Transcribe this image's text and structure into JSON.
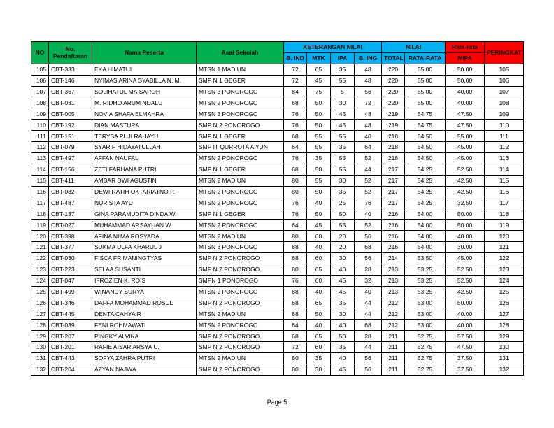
{
  "header": {
    "no": "NO",
    "registration": "No. Pendaftaran",
    "name": "Nama Peserta",
    "school": "Asal Sekolah",
    "scores_group": "KETERANGAN NILAI",
    "subjects": [
      "B. IND",
      "MTK",
      "IPA",
      "B. ING"
    ],
    "totals_group": "NILAI",
    "totals": [
      "TOTAL",
      "RATA-RATA"
    ],
    "mipa_top": "Rata-rata",
    "mipa_bottom": "MIPA",
    "rank": "PERINGKAT"
  },
  "rows": [
    [
      "105",
      "CBT-333",
      "EKA HIMATUL",
      "MTSN 1 MADIUN",
      "72",
      "65",
      "35",
      "48",
      "220",
      "55.00",
      "50.00",
      "105"
    ],
    [
      "106",
      "CBT-146",
      "NYIMAS ARINA SYABILLA N. M.",
      "SMP N 1 GEGER",
      "72",
      "45",
      "55",
      "48",
      "220",
      "55.00",
      "50.00",
      "106"
    ],
    [
      "107",
      "CBT-367",
      "SOLIHATUL MAISAROH",
      "MTSN 3 PONOROGO",
      "84",
      "75",
      "5",
      "56",
      "220",
      "55.00",
      "40.00",
      "107"
    ],
    [
      "108",
      "CBT-031",
      "M. RIDHO ARUM NDALU",
      "MTSN 2 PONOROGO",
      "68",
      "50",
      "30",
      "72",
      "220",
      "55.00",
      "40.00",
      "108"
    ],
    [
      "109",
      "CBT-005",
      "NOVIA SHAFA ELMAHRA",
      "MTSN 3 PONOROGO",
      "76",
      "50",
      "45",
      "48",
      "219",
      "54.75",
      "47.50",
      "109"
    ],
    [
      "110",
      "CBT-192",
      "DIAN MASTURA",
      "SMP N 2 PONOROGO",
      "76",
      "50",
      "45",
      "48",
      "219",
      "54.75",
      "47.50",
      "110"
    ],
    [
      "111",
      "CBT-151",
      "TERYSA PUJI RAHAYU",
      "SMP N 1 GEGER",
      "68",
      "55",
      "55",
      "40",
      "218",
      "54.50",
      "55.00",
      "111"
    ],
    [
      "112",
      "CBT-079",
      "SYARIF HIDAYATULLAH",
      "SMP IT QURROTA A'YUN",
      "64",
      "55",
      "35",
      "64",
      "218",
      "54.50",
      "45.00",
      "112"
    ],
    [
      "113",
      "CBT-497",
      "AFFAN NAUFAL",
      "MTSN 2 PONOROGO",
      "76",
      "35",
      "55",
      "52",
      "218",
      "54.50",
      "45.00",
      "113"
    ],
    [
      "114",
      "CBT-156",
      "ZETI FARHANA PUTRI",
      "SMP N 1 GEGER",
      "68",
      "50",
      "55",
      "44",
      "217",
      "54.25",
      "52.50",
      "114"
    ],
    [
      "115",
      "CBT-411",
      "AMBAR DWI AGUSTIN",
      "MTSN 2 MADIUN",
      "80",
      "55",
      "30",
      "52",
      "217",
      "54.25",
      "42.50",
      "115"
    ],
    [
      "116",
      "CBT-032",
      "DEWI RATIH OKTARIATNO P.",
      "MTSN 2 PONOROGO",
      "80",
      "50",
      "35",
      "52",
      "217",
      "54.25",
      "42.50",
      "116"
    ],
    [
      "117",
      "CBT-487",
      "NURISTA AYU",
      "MTSN 2 PONOROGO",
      "76",
      "40",
      "25",
      "76",
      "217",
      "54.25",
      "32.50",
      "117"
    ],
    [
      "118",
      "CBT-137",
      "GINA PARAMUDITA DINDA W.",
      "SMP N 1 GEGER",
      "76",
      "50",
      "50",
      "40",
      "216",
      "54.00",
      "50.00",
      "118"
    ],
    [
      "119",
      "CBT-027",
      "MUHAMMAD ARSAYUAN W.",
      "MTSN 2 PONOROGO",
      "64",
      "45",
      "55",
      "52",
      "216",
      "54.00",
      "50.00",
      "119"
    ],
    [
      "120",
      "CBT-398",
      "AFINA NI'MA ROSYADA",
      "MTSN 2 MADIUN",
      "80",
      "60",
      "20",
      "56",
      "216",
      "54.00",
      "40.00",
      "120"
    ],
    [
      "121",
      "CBT-377",
      "SUKMA ULFA KHARUL J",
      "MTSN 3 PONOROGO",
      "88",
      "40",
      "20",
      "68",
      "216",
      "54.00",
      "30.00",
      "121"
    ],
    [
      "122",
      "CBT-030",
      "FISCA FRIMANINGTYAS",
      "SMP N 2 PONOROGO",
      "68",
      "60",
      "30",
      "56",
      "214",
      "53.50",
      "45.00",
      "122"
    ],
    [
      "123",
      "CBT-223",
      "SELAA SUSANTI",
      "SMP N 2 PONOROGO",
      "80",
      "65",
      "40",
      "28",
      "213",
      "53.25",
      "52.50",
      "123"
    ],
    [
      "124",
      "CBT-047",
      "IFROZIEN K. ROIS",
      "SMPN 1 PONOROGO",
      "76",
      "60",
      "45",
      "32",
      "213",
      "53.25",
      "52.50",
      "124"
    ],
    [
      "125",
      "CBT-499",
      "WINANDY SURYA",
      "MTSN 2 PONOROGO",
      "88",
      "40",
      "45",
      "40",
      "213",
      "53.25",
      "42.50",
      "125"
    ],
    [
      "126",
      "CBT-346",
      "DAFFA MOHAMMAD ROSUL",
      "SMP N 2 PONOROGO",
      "68",
      "65",
      "35",
      "44",
      "212",
      "53.00",
      "50.00",
      "126"
    ],
    [
      "127",
      "CBT-445",
      "DENTA CAHYA R",
      "MTSN 2 MADIUN",
      "88",
      "50",
      "30",
      "44",
      "212",
      "53.00",
      "40.00",
      "127"
    ],
    [
      "128",
      "CBT-039",
      "FENI ROHMAWATI",
      "MTSN 2 PONOROGO",
      "64",
      "40",
      "40",
      "68",
      "212",
      "53.00",
      "40.00",
      "128"
    ],
    [
      "129",
      "CBT-207",
      "PINGKY ALVINA",
      "SMP N 2 PONOROGO",
      "68",
      "65",
      "50",
      "28",
      "211",
      "52.75",
      "57.50",
      "129"
    ],
    [
      "130",
      "CBT-201",
      "RAFIE AISAR ARSYA U.",
      "SMP N 2 PONOROGO",
      "72",
      "60",
      "35",
      "44",
      "211",
      "52.75",
      "47.50",
      "130"
    ],
    [
      "131",
      "CBT-443",
      "SOFYA ZAHRA PUTRI",
      "MTSN 2 MADIUN",
      "80",
      "35",
      "40",
      "56",
      "211",
      "52.75",
      "37.50",
      "131"
    ],
    [
      "132",
      "CBT-204",
      "AZYAN NAJWA",
      "SMP N 2 PONOROGO",
      "80",
      "30",
      "45",
      "56",
      "211",
      "52.75",
      "37.50",
      "132"
    ]
  ],
  "footer": "Page 5"
}
